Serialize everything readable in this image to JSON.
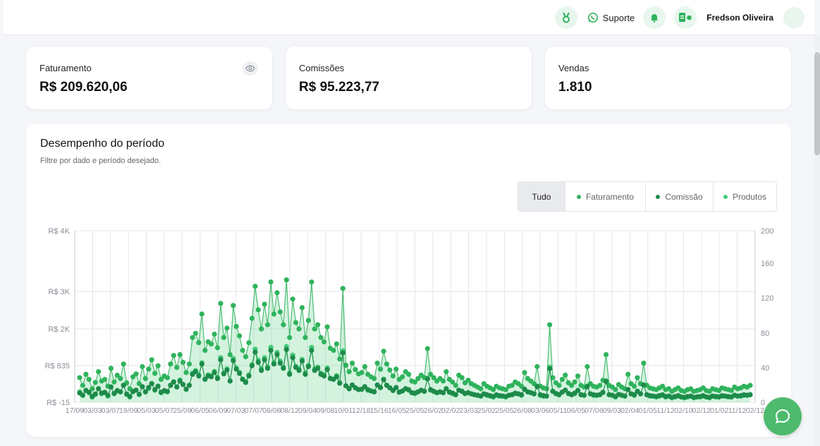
{
  "header": {
    "support_label": "Suporte",
    "user_name": "Fredson Oliveira",
    "icons": [
      "medal-icon",
      "whatsapp-icon",
      "bell-icon",
      "document-icon"
    ]
  },
  "stats": [
    {
      "label": "Faturamento",
      "value": "R$ 209.620,06"
    },
    {
      "label": "Comissões",
      "value": "R$ 95.223,77"
    },
    {
      "label": "Vendas",
      "value": "1.810"
    }
  ],
  "performance": {
    "title": "Desempenho do período",
    "subtitle": "Filtre por dado e período desejado.",
    "filters": [
      {
        "label": "Tudo",
        "active": true
      },
      {
        "label": "Faturamento",
        "color": "#2fb35c"
      },
      {
        "label": "Comissão",
        "color": "#1e8a4a"
      },
      {
        "label": "Produtos",
        "color": "#43cc78"
      }
    ]
  },
  "colors": {
    "accent": "#4dba6c",
    "faturamento": "#2fb35c",
    "comissao": "#1e8a4a",
    "produtos": "#43cc78"
  },
  "chart_data": {
    "type": "line",
    "y_left_ticks": [
      "R$ 4K",
      "R$ 3K",
      "R$ 2K",
      "R$ 835",
      "R$ -15"
    ],
    "y_right_ticks": [
      "200",
      "160",
      "120",
      "80",
      "40",
      "0"
    ],
    "ylim_left": [
      -15,
      4000
    ],
    "ylim_right": [
      0,
      200
    ],
    "x_tick_labels": [
      "17/09",
      "03/03",
      "03/07",
      "19/09",
      "05/03",
      "05/07",
      "25/09",
      "06/05",
      "06/09",
      "07/03",
      "07/07",
      "08/08",
      "08/12",
      "09/04",
      "09/08",
      "10/01",
      "12/18",
      "15/16",
      "16/05",
      "25/05",
      "26/02",
      "02/02",
      "23/03",
      "25/02",
      "25/05",
      "26/08",
      "03/06",
      "05/11",
      "06/05",
      "07/06",
      "09/03",
      "02/04",
      "01/05",
      "11/12",
      "02/10",
      "02/12",
      "01/02",
      "11/12",
      "02/12"
    ],
    "grid": true,
    "legend": "top-right",
    "series": [
      {
        "name": "Faturamento",
        "values": [
          560,
          380,
          640,
          520,
          300,
          450,
          700,
          480,
          520,
          360,
          780,
          460,
          620,
          540,
          880,
          440,
          300,
          580,
          650,
          420,
          820,
          540,
          760,
          980,
          660,
          840,
          520,
          600,
          560,
          880,
          1080,
          800,
          1100,
          920,
          680,
          880,
          1500,
          1600,
          1380,
          2050,
          1200,
          1400,
          1350,
          1580,
          1260,
          2300,
          1500,
          1720,
          1100,
          2250,
          1760,
          1540,
          1200,
          1050,
          1380,
          1950,
          2700,
          2150,
          1700,
          2280,
          1800,
          2800,
          2050,
          2550,
          2100,
          1800,
          2850,
          1500,
          2400,
          1850,
          1700,
          2200,
          1500,
          1900,
          2800,
          1700,
          1800,
          1500,
          1400,
          1750,
          1250,
          1200,
          1350,
          1000,
          2650,
          850,
          700,
          900,
          750,
          650,
          680,
          820,
          640,
          580,
          540,
          900,
          760,
          1180,
          880,
          740,
          600,
          760,
          520,
          580,
          700,
          640,
          480,
          460,
          540,
          620,
          560,
          1240,
          640,
          560,
          480,
          540,
          480,
          700,
          520,
          460,
          380,
          620,
          560,
          440,
          500,
          420,
          380,
          340,
          300,
          420,
          360,
          320,
          280,
          360,
          320,
          300,
          280,
          360,
          380,
          460,
          420,
          360,
          680,
          540,
          480,
          420,
          820,
          360,
          320,
          300,
          1800,
          560,
          440,
          380,
          520,
          620,
          440,
          380,
          460,
          600,
          380,
          340,
          820,
          420,
          360,
          340,
          380,
          500,
          1100,
          380,
          340,
          280,
          400,
          340,
          300,
          640,
          420,
          360,
          560,
          420,
          900,
          380,
          320,
          300,
          280,
          320,
          360,
          280,
          300,
          240,
          280,
          320,
          260,
          240,
          280,
          300,
          240,
          260,
          280,
          320,
          260,
          240,
          300,
          280,
          260,
          320,
          300,
          280,
          260,
          340,
          300,
          320,
          360,
          340,
          380
        ],
        "color": "#2fb35c"
      },
      {
        "name": "Comissão",
        "values": [
          200,
          150,
          260,
          220,
          120,
          180,
          300,
          200,
          220,
          150,
          340,
          190,
          260,
          230,
          380,
          180,
          120,
          240,
          270,
          170,
          350,
          230,
          330,
          420,
          280,
          360,
          220,
          260,
          240,
          380,
          460,
          340,
          480,
          400,
          290,
          380,
          640,
          700,
          600,
          880,
          520,
          600,
          580,
          680,
          540,
          980,
          650,
          740,
          480,
          960,
          760,
          660,
          520,
          450,
          600,
          840,
          1160,
          920,
          730,
          980,
          780,
          1200,
          880,
          1100,
          900,
          780,
          1220,
          640,
          1030,
          800,
          730,
          950,
          640,
          820,
          1200,
          730,
          780,
          640,
          600,
          750,
          540,
          520,
          580,
          430,
          1140,
          370,
          300,
          390,
          320,
          280,
          290,
          350,
          280,
          250,
          230,
          390,
          330,
          510,
          380,
          320,
          260,
          330,
          220,
          250,
          300,
          280,
          210,
          200,
          230,
          270,
          240,
          530,
          280,
          240,
          210,
          230,
          210,
          300,
          220,
          200,
          160,
          270,
          240,
          190,
          210,
          180,
          160,
          150,
          130,
          180,
          160,
          140,
          120,
          160,
          140,
          130,
          120,
          150,
          160,
          200,
          180,
          160,
          290,
          230,
          210,
          180,
          350,
          160,
          140,
          130,
          770,
          240,
          190,
          160,
          220,
          270,
          190,
          160,
          200,
          260,
          160,
          150,
          350,
          180,
          160,
          150,
          160,
          220,
          470,
          160,
          150,
          120,
          170,
          150,
          130,
          280,
          180,
          160,
          240,
          180,
          390,
          160,
          140,
          130,
          120,
          140,
          160,
          120,
          130,
          100,
          120,
          140,
          110,
          100,
          120,
          130,
          100,
          110,
          120,
          140,
          110,
          100,
          130,
          120,
          110,
          140,
          130,
          120,
          110,
          150,
          130,
          140,
          160,
          150,
          160
        ],
        "color": "#1e8a4a"
      },
      {
        "name": "Produtos",
        "values": [
          12,
          8,
          14,
          11,
          6,
          9,
          16,
          10,
          11,
          7,
          18,
          10,
          13,
          12,
          20,
          9,
          6,
          12,
          14,
          9,
          18,
          12,
          16,
          22,
          14,
          19,
          11,
          13,
          12,
          20,
          24,
          18,
          26,
          21,
          15,
          20,
          34,
          37,
          32,
          46,
          27,
          32,
          31,
          36,
          29,
          52,
          34,
          39,
          25,
          51,
          40,
          35,
          27,
          24,
          32,
          44,
          62,
          49,
          39,
          52,
          41,
          64,
          46,
          58,
          48,
          41,
          65,
          34,
          55,
          42,
          39,
          50,
          34,
          43,
          64,
          39,
          41,
          34,
          32,
          40,
          28,
          27,
          31,
          23,
          60,
          19,
          16,
          20,
          17,
          15,
          15,
          18,
          14,
          13,
          12,
          20,
          17,
          27,
          20,
          17,
          14,
          17,
          12,
          13,
          16,
          14,
          11,
          10,
          12,
          14,
          13,
          28,
          14,
          13,
          11,
          12,
          11,
          16,
          12,
          10,
          9,
          14,
          13,
          10,
          11,
          10,
          9,
          8,
          7,
          10,
          8,
          7,
          6,
          8,
          7,
          7,
          6,
          8,
          9,
          10,
          10,
          8,
          15,
          12,
          11,
          10,
          19,
          8,
          7,
          7,
          41,
          13,
          10,
          9,
          12,
          14,
          10,
          9,
          10,
          14,
          9,
          8,
          19,
          10,
          8,
          8,
          9,
          11,
          25,
          9,
          8,
          6,
          9,
          8,
          7,
          15,
          10,
          8,
          13,
          10,
          20,
          9,
          7,
          7,
          6,
          7,
          8,
          6,
          7,
          5,
          6,
          7,
          6,
          5,
          6,
          7,
          5,
          6,
          6,
          7,
          6,
          5,
          7,
          6,
          6,
          7,
          7,
          6,
          6,
          8,
          7,
          7,
          8,
          8,
          9
        ],
        "color": "#43cc78"
      }
    ]
  }
}
